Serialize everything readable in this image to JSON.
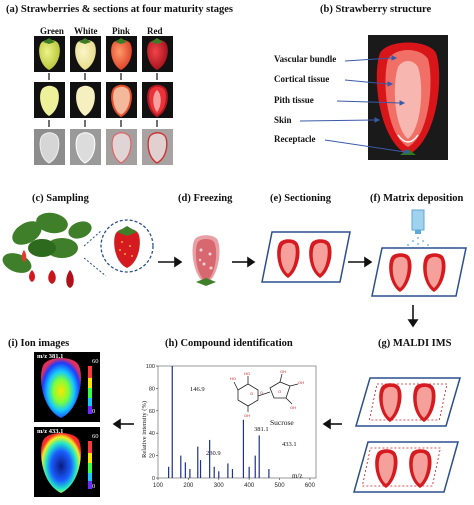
{
  "panels": {
    "a": "(a) Strawberries & sections at four maturity stages",
    "b": "(b) Strawberry structure",
    "c": "(c) Sampling",
    "d": "(d) Freezing",
    "e": "(e) Sectioning",
    "f": "(f) Matrix deposition",
    "g": "(g) MALDI IMS",
    "h": "(h) Compound identification",
    "i": "(i) Ion images"
  },
  "stages": [
    "Green",
    "White",
    "Pink",
    "Red"
  ],
  "structure_labels": [
    "Vascular bundle",
    "Cortical tissue",
    "Pith tissue",
    "Skin",
    "Receptacle"
  ],
  "ion_images": [
    {
      "mz": "m/z 381.1",
      "scale_max": "60",
      "scale_min": "0"
    },
    {
      "mz": "m/z 433.1",
      "scale_max": "60",
      "scale_min": "0"
    }
  ],
  "spectrum": {
    "ylabel": "Relative intensity (%)",
    "xlabel": "m/z",
    "compound": "Sucrose",
    "peak_labels": [
      "146.9",
      "230.9",
      "381.1",
      "433.1"
    ]
  },
  "chart_data": {
    "type": "bar",
    "x": [
      135,
      146.9,
      175,
      190,
      205,
      230.9,
      240,
      270,
      285,
      300,
      330,
      345,
      381.1,
      400,
      420,
      433.1,
      465
    ],
    "values": [
      10,
      100,
      20,
      14,
      8,
      28,
      16,
      34,
      10,
      6,
      13,
      8,
      52,
      10,
      20,
      38,
      8
    ],
    "xticks": [
      "100",
      "200",
      "300",
      "400",
      "500",
      "600"
    ],
    "yticks": [
      "0",
      "20",
      "40",
      "60",
      "80",
      "100"
    ],
    "xlim": [
      100,
      620
    ],
    "ylim": [
      0,
      100
    ],
    "xlabel": "m/z",
    "ylabel": "Relative intensity (%)"
  }
}
